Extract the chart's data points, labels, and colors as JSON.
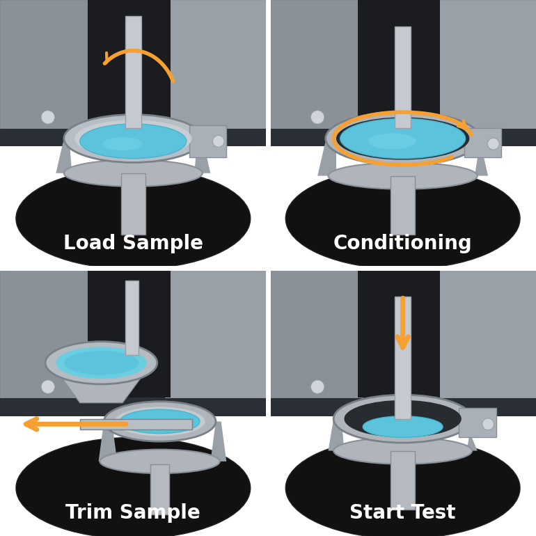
{
  "labels": [
    "Load Sample",
    "Conditioning",
    "Trim Sample",
    "Start Test"
  ],
  "label_color": "#ffffff",
  "label_fontsize": 20,
  "label_fontweight": "bold",
  "border_color": "#ffffff",
  "border_width": 5,
  "bg_color": "#ffffff",
  "arrow_color": "#f5a030",
  "fig_width": 7.7,
  "fig_height": 7.7,
  "dpi": 100
}
